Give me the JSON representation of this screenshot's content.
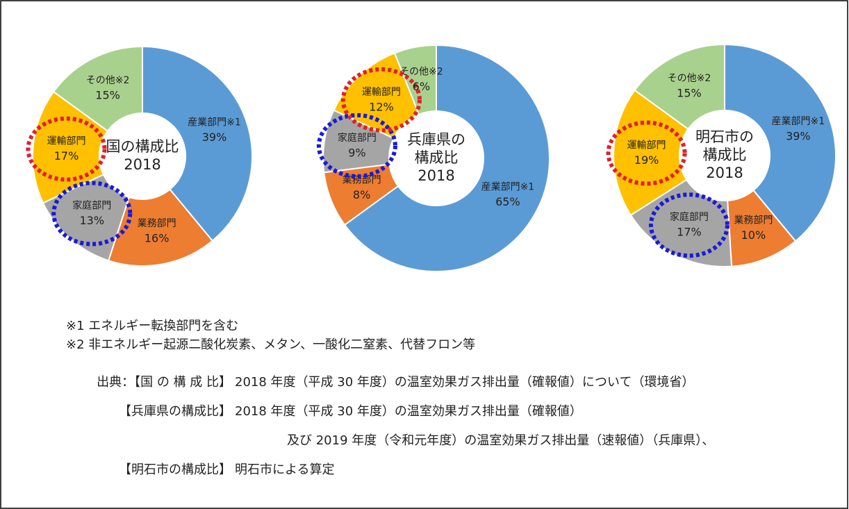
{
  "chart_data": [
    {
      "type": "pie",
      "donut": true,
      "title": [
        "国の構成比"
      ],
      "year": "2018",
      "categories": [
        "産業部門※1",
        "業務部門",
        "家庭部門",
        "運輸部門",
        "その他※2"
      ],
      "values": [
        39,
        16,
        13,
        17,
        15
      ],
      "value_labels": [
        "39%",
        "16%",
        "13%",
        "17%",
        "15%"
      ],
      "colors": [
        "#5b9bd5",
        "#ed7d31",
        "#a5a5a5",
        "#ffc000",
        "#a9d18e"
      ]
    },
    {
      "type": "pie",
      "donut": true,
      "title": [
        "兵庫県の",
        "構成比"
      ],
      "year": "2018",
      "categories": [
        "産業部門※1",
        "業務部門",
        "家庭部門",
        "運輸部門",
        "その他※2"
      ],
      "values": [
        65,
        8,
        9,
        12,
        6
      ],
      "value_labels": [
        "65%",
        "8%",
        "9%",
        "12%",
        "6%"
      ],
      "colors": [
        "#5b9bd5",
        "#ed7d31",
        "#a5a5a5",
        "#ffc000",
        "#a9d18e"
      ]
    },
    {
      "type": "pie",
      "donut": true,
      "title": [
        "明石市の",
        "構成比"
      ],
      "year": "2018",
      "categories": [
        "産業部門※1",
        "業務部門",
        "家庭部門",
        "運輸部門",
        "その他※2"
      ],
      "values": [
        39,
        10,
        17,
        19,
        15
      ],
      "value_labels": [
        "39%",
        "10%",
        "17%",
        "19%",
        "15%"
      ],
      "colors": [
        "#5b9bd5",
        "#ed7d31",
        "#a5a5a5",
        "#ffc000",
        "#a9d18e"
      ]
    }
  ],
  "notes": [
    "※1 エネルギー転換部門を含む",
    "※2 非エネルギー起源二酸化炭素、メタン、一酸化二窒素、代替フロン等"
  ],
  "sources": [
    {
      "label": "出典：【国 の 構 成 比】",
      "text": "2018 年度（平成 30 年度）の温室効果ガス排出量（確報値）について（環境省）"
    },
    {
      "label": "【兵庫県の構成比】",
      "text": "2018 年度（平成 30 年度）の温室効果ガス排出量（確報値）"
    },
    {
      "label": "",
      "text": "及び 2019 年度（令和元年度）の温室効果ガス排出量（速報値）（兵庫県）、"
    },
    {
      "label": "【明石市の構成比】",
      "text": "明石市による算定"
    }
  ]
}
